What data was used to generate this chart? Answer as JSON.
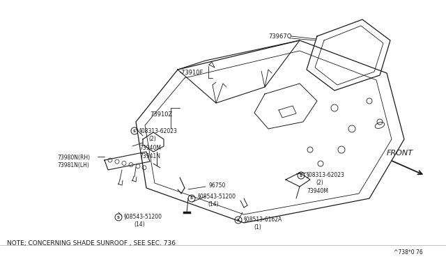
{
  "bg_color": "#ffffff",
  "line_color": "#1a1a1a",
  "text_color": "#1a1a1a",
  "note": "NOTE; CONCERNING SHADE SUNROOF , SEE SEC. 736",
  "page_ref": "^738*0 76",
  "front_label": "FRONT"
}
